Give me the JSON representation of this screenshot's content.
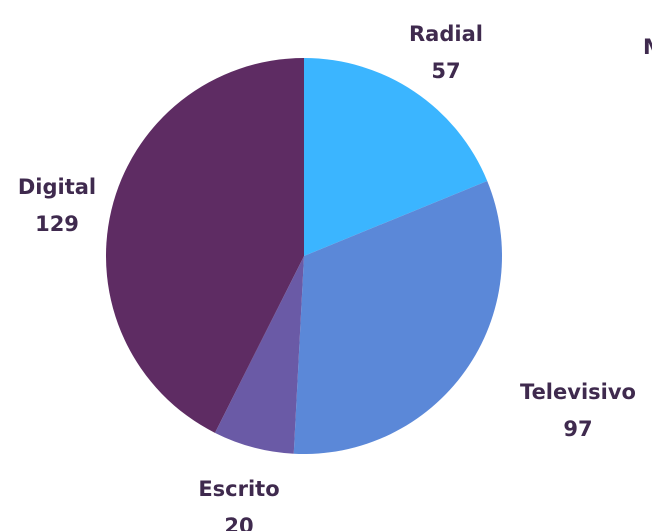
{
  "chart_data": {
    "type": "pie",
    "slices": [
      {
        "label": "Radial",
        "value": 57,
        "color": "#3bb5ff"
      },
      {
        "label": "Televisivo",
        "value": 97,
        "color": "#5b88d8"
      },
      {
        "label": "Escrito",
        "value": 20,
        "color": "#6a5aa6"
      },
      {
        "label": "Digital",
        "value": 129,
        "color": "#5e2c63"
      }
    ],
    "cropped_label": "M",
    "label_color": "#3f2a4e"
  }
}
